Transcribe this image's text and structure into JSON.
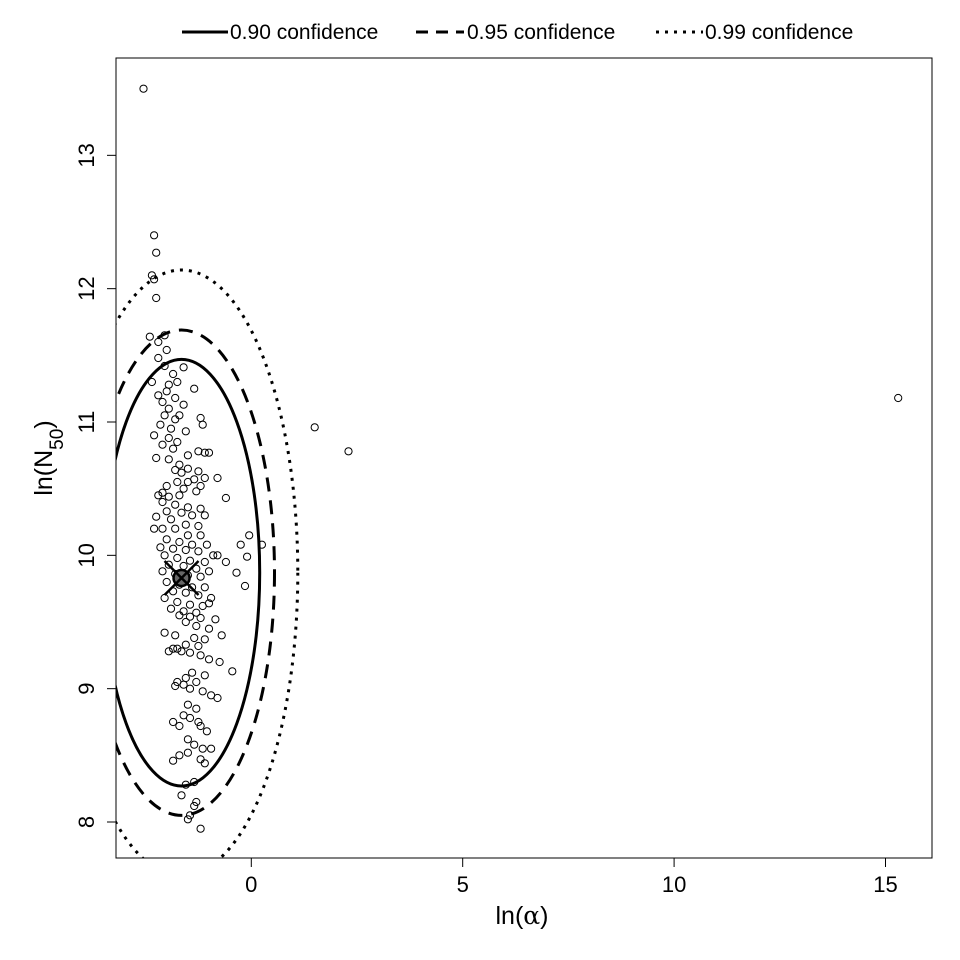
{
  "chart_data": {
    "type": "scatter",
    "xlabel": {
      "prefix": "ln(",
      "symbol": "α",
      "suffix": ")"
    },
    "ylabel": {
      "prefix": "ln(N",
      "subscript": "50",
      "suffix": ")"
    },
    "xlim": [
      -3.2,
      16.1
    ],
    "ylim": [
      7.73,
      13.73
    ],
    "xticks": [
      "0",
      "5",
      "10",
      "15"
    ],
    "yticks": [
      "8",
      "9",
      "10",
      "11",
      "12",
      "13"
    ],
    "grid": false,
    "legend_position": "top (outside, above plot)",
    "legend": [
      {
        "label": "0.90 confidence",
        "line_style": "solid"
      },
      {
        "label": "0.95 confidence",
        "line_style": "dashed"
      },
      {
        "label": "0.99 confidence",
        "line_style": "dotted"
      }
    ],
    "best_estimate": {
      "x": -1.65,
      "y": 9.83,
      "marker": "filled circle with x"
    },
    "confidence_ellipses": [
      {
        "level": "0.90",
        "center": [
          -1.65,
          9.87
        ],
        "semi_axis_x": 1.85,
        "semi_axis_y": 1.6,
        "line_style": "solid"
      },
      {
        "level": "0.95",
        "center": [
          -1.65,
          9.87
        ],
        "semi_axis_x": 2.2,
        "semi_axis_y": 1.82,
        "line_style": "dashed"
      },
      {
        "level": "0.99",
        "center": [
          -1.65,
          9.87
        ],
        "semi_axis_x": 2.75,
        "semi_axis_y": 2.27,
        "line_style": "dotted"
      }
    ],
    "points": [
      [
        -2.55,
        13.5
      ],
      [
        -2.3,
        12.4
      ],
      [
        -2.25,
        12.27
      ],
      [
        -2.35,
        12.1
      ],
      [
        -2.3,
        12.07
      ],
      [
        -2.25,
        11.93
      ],
      [
        -2.4,
        11.64
      ],
      [
        -2.05,
        11.65
      ],
      [
        -2.2,
        11.6
      ],
      [
        -2.0,
        11.54
      ],
      [
        -2.2,
        11.48
      ],
      [
        -2.05,
        11.42
      ],
      [
        -1.6,
        11.41
      ],
      [
        -1.85,
        11.36
      ],
      [
        -2.35,
        11.3
      ],
      [
        -1.95,
        11.28
      ],
      [
        -1.75,
        11.3
      ],
      [
        -1.35,
        11.25
      ],
      [
        -2.0,
        11.23
      ],
      [
        -2.2,
        11.2
      ],
      [
        -1.8,
        11.18
      ],
      [
        -2.1,
        11.15
      ],
      [
        -1.6,
        11.13
      ],
      [
        -1.95,
        11.1
      ],
      [
        -1.7,
        11.05
      ],
      [
        -2.05,
        11.05
      ],
      [
        -1.8,
        11.02
      ],
      [
        -1.2,
        11.03
      ],
      [
        -2.15,
        10.98
      ],
      [
        -1.9,
        10.95
      ],
      [
        -1.15,
        10.98
      ],
      [
        -1.55,
        10.93
      ],
      [
        -2.3,
        10.9
      ],
      [
        -1.95,
        10.88
      ],
      [
        -1.75,
        10.85
      ],
      [
        -2.1,
        10.83
      ],
      [
        -1.85,
        10.8
      ],
      [
        -1.25,
        10.78
      ],
      [
        -1.1,
        10.77
      ],
      [
        -1.0,
        10.77
      ],
      [
        -1.5,
        10.75
      ],
      [
        -2.25,
        10.73
      ],
      [
        -1.95,
        10.72
      ],
      [
        -1.7,
        10.68
      ],
      [
        -1.5,
        10.65
      ],
      [
        -1.25,
        10.63
      ],
      [
        -1.8,
        10.64
      ],
      [
        -1.65,
        10.62
      ],
      [
        -1.1,
        10.58
      ],
      [
        -1.35,
        10.57
      ],
      [
        -0.8,
        10.58
      ],
      [
        -1.75,
        10.55
      ],
      [
        -1.5,
        10.55
      ],
      [
        -1.2,
        10.52
      ],
      [
        -2.0,
        10.52
      ],
      [
        -1.6,
        10.5
      ],
      [
        -2.1,
        10.47
      ],
      [
        -1.3,
        10.48
      ],
      [
        -1.95,
        10.44
      ],
      [
        -1.7,
        10.45
      ],
      [
        -2.2,
        10.45
      ],
      [
        -0.6,
        10.43
      ],
      [
        -2.1,
        10.4
      ],
      [
        -1.8,
        10.38
      ],
      [
        -1.5,
        10.36
      ],
      [
        -1.2,
        10.35
      ],
      [
        -2.0,
        10.33
      ],
      [
        -1.65,
        10.32
      ],
      [
        -1.4,
        10.3
      ],
      [
        -1.1,
        10.3
      ],
      [
        -2.25,
        10.29
      ],
      [
        -1.9,
        10.27
      ],
      [
        -1.55,
        10.23
      ],
      [
        -1.25,
        10.22
      ],
      [
        -2.1,
        10.2
      ],
      [
        -1.8,
        10.2
      ],
      [
        -2.3,
        10.2
      ],
      [
        -1.5,
        10.15
      ],
      [
        -1.2,
        10.15
      ],
      [
        -2.0,
        10.12
      ],
      [
        -1.7,
        10.1
      ],
      [
        -1.4,
        10.08
      ],
      [
        -1.05,
        10.08
      ],
      [
        -2.15,
        10.06
      ],
      [
        -1.85,
        10.05
      ],
      [
        -1.55,
        10.04
      ],
      [
        -1.25,
        10.03
      ],
      [
        -0.9,
        10.0
      ],
      [
        -2.05,
        10.0
      ],
      [
        -1.75,
        9.98
      ],
      [
        -1.45,
        9.96
      ],
      [
        -1.1,
        9.95
      ],
      [
        -0.6,
        9.95
      ],
      [
        -1.95,
        9.93
      ],
      [
        -1.6,
        9.92
      ],
      [
        -1.3,
        9.9
      ],
      [
        -1.0,
        9.88
      ],
      [
        -2.1,
        9.88
      ],
      [
        -1.8,
        9.86
      ],
      [
        -1.5,
        9.85
      ],
      [
        -1.2,
        9.84
      ],
      [
        -0.35,
        9.87
      ],
      [
        -0.1,
        9.99
      ],
      [
        -0.05,
        10.15
      ],
      [
        -0.25,
        10.08
      ],
      [
        -0.8,
        10.0
      ],
      [
        -2.0,
        9.8
      ],
      [
        -1.7,
        9.78
      ],
      [
        -1.4,
        9.76
      ],
      [
        -1.1,
        9.76
      ],
      [
        -0.15,
        9.77
      ],
      [
        -1.85,
        9.73
      ],
      [
        -1.55,
        9.72
      ],
      [
        -1.25,
        9.7
      ],
      [
        -0.95,
        9.68
      ],
      [
        -2.05,
        9.68
      ],
      [
        -1.75,
        9.65
      ],
      [
        -1.45,
        9.63
      ],
      [
        -1.15,
        9.62
      ],
      [
        -1.0,
        9.64
      ],
      [
        -1.9,
        9.6
      ],
      [
        -1.6,
        9.58
      ],
      [
        -1.3,
        9.57
      ],
      [
        -1.7,
        9.55
      ],
      [
        -1.45,
        9.54
      ],
      [
        -1.2,
        9.53
      ],
      [
        -0.85,
        9.52
      ],
      [
        -1.55,
        9.5
      ],
      [
        -1.3,
        9.47
      ],
      [
        -1.0,
        9.45
      ],
      [
        -2.05,
        9.42
      ],
      [
        -1.8,
        9.4
      ],
      [
        -1.35,
        9.38
      ],
      [
        -1.1,
        9.37
      ],
      [
        -0.7,
        9.4
      ],
      [
        -1.55,
        9.33
      ],
      [
        -1.25,
        9.32
      ],
      [
        -1.85,
        9.3
      ],
      [
        -1.65,
        9.28
      ],
      [
        -1.45,
        9.27
      ],
      [
        -1.75,
        9.3
      ],
      [
        -1.95,
        9.28
      ],
      [
        -1.2,
        9.25
      ],
      [
        -1.0,
        9.22
      ],
      [
        -0.75,
        9.2
      ],
      [
        -0.45,
        9.13
      ],
      [
        -1.4,
        9.12
      ],
      [
        -1.1,
        9.1
      ],
      [
        -1.55,
        9.08
      ],
      [
        -1.3,
        9.05
      ],
      [
        -1.75,
        9.05
      ],
      [
        -1.6,
        9.03
      ],
      [
        -1.45,
        9.0
      ],
      [
        -1.8,
        9.02
      ],
      [
        -1.15,
        8.98
      ],
      [
        -0.95,
        8.95
      ],
      [
        -0.8,
        8.93
      ],
      [
        -1.5,
        8.88
      ],
      [
        -1.3,
        8.85
      ],
      [
        -1.6,
        8.8
      ],
      [
        -1.45,
        8.78
      ],
      [
        -1.25,
        8.75
      ],
      [
        -1.85,
        8.75
      ],
      [
        -1.7,
        8.72
      ],
      [
        -1.2,
        8.72
      ],
      [
        -1.05,
        8.68
      ],
      [
        -1.5,
        8.62
      ],
      [
        -1.35,
        8.58
      ],
      [
        -1.15,
        8.55
      ],
      [
        -0.95,
        8.55
      ],
      [
        -1.5,
        8.52
      ],
      [
        -1.7,
        8.5
      ],
      [
        -1.85,
        8.46
      ],
      [
        -1.2,
        8.47
      ],
      [
        -1.1,
        8.44
      ],
      [
        -1.55,
        8.28
      ],
      [
        -1.35,
        8.3
      ],
      [
        -1.65,
        8.2
      ],
      [
        -1.3,
        8.15
      ],
      [
        -1.35,
        8.12
      ],
      [
        -1.45,
        8.05
      ],
      [
        -1.5,
        8.02
      ],
      [
        -1.2,
        7.95
      ],
      [
        0.25,
        10.08
      ],
      [
        1.5,
        10.96
      ],
      [
        2.3,
        10.78
      ],
      [
        15.3,
        11.18
      ]
    ]
  }
}
